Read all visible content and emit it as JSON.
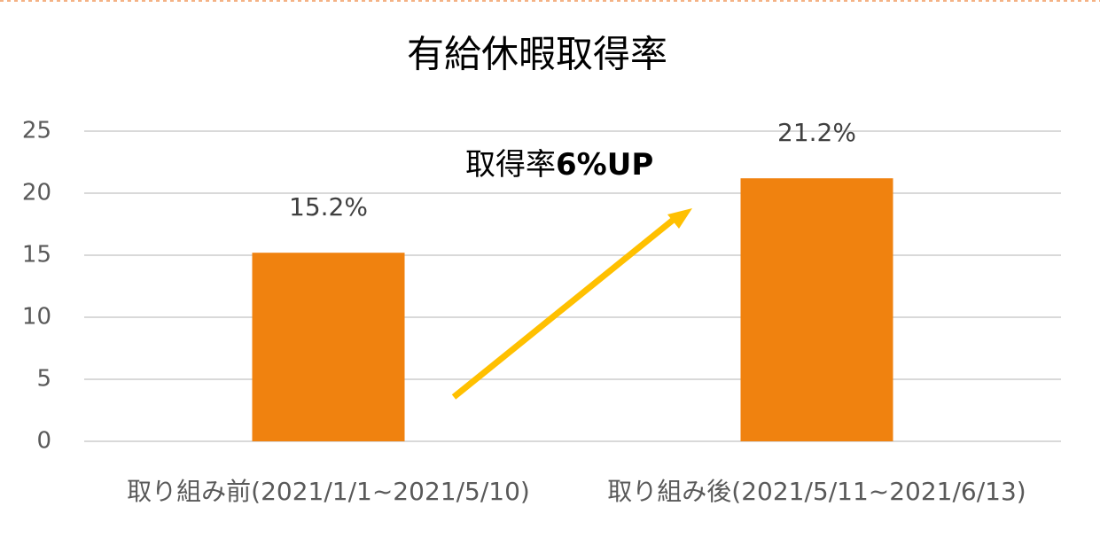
{
  "chart_data": {
    "type": "bar",
    "title": "有給休暇取得率",
    "categories": [
      "取り組み前(2021/1/1~2021/5/10)",
      "取り組み後(2021/5/11~2021/6/13)"
    ],
    "values": [
      15.2,
      21.2
    ],
    "value_labels": [
      "15.2%",
      "21.2%"
    ],
    "color": "#f0820f",
    "ylim": [
      0,
      25
    ],
    "yticks": [
      0,
      5,
      10,
      15,
      20,
      25
    ],
    "grid": true,
    "annotation": {
      "text": "取得率",
      "emphasis": "6%UP",
      "arrow_color": "#ffc000"
    }
  }
}
